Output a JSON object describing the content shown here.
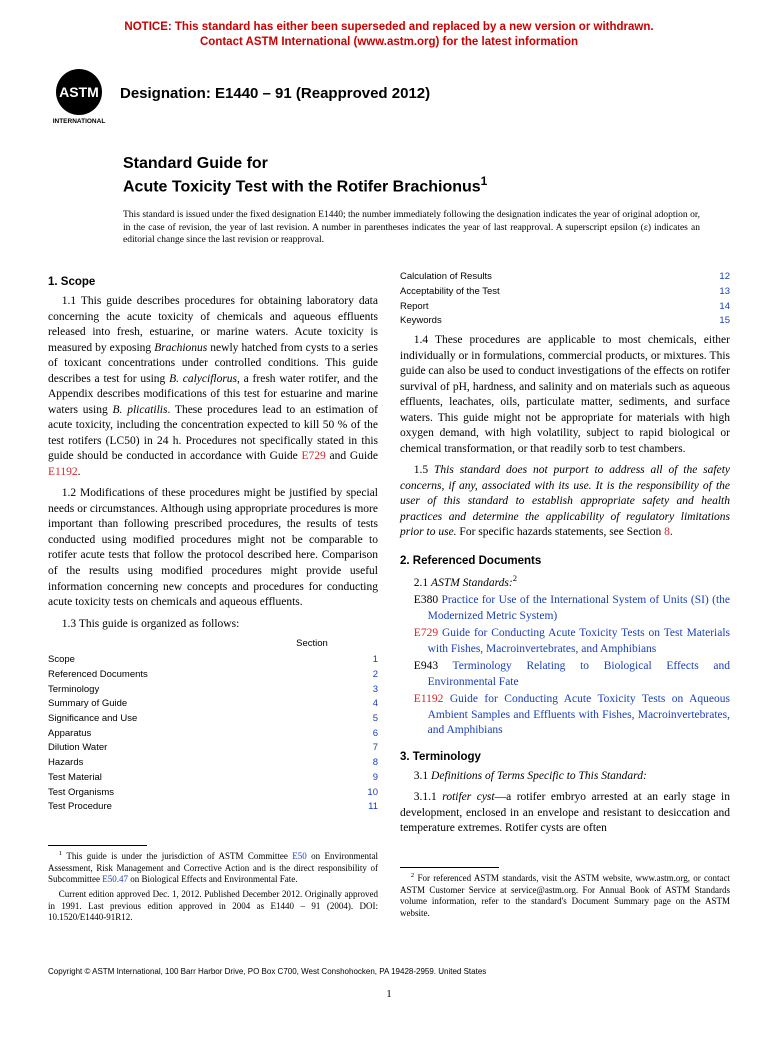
{
  "notice": {
    "line1": "NOTICE: This standard has either been superseded and replaced by a new version or withdrawn.",
    "line2": "Contact ASTM International (www.astm.org) for the latest information",
    "color": "#cc0000"
  },
  "designation": "Designation: E1440 – 91 (Reapproved 2012)",
  "title": {
    "overline": "Standard Guide for",
    "main": "Acute Toxicity Test with the Rotifer Brachionus",
    "sup": "1"
  },
  "issuance": "This standard is issued under the fixed designation E1440; the number immediately following the designation indicates the year of original adoption or, in the case of revision, the year of last revision. A number in parentheses indicates the year of last reapproval. A superscript epsilon (ε) indicates an editorial change since the last revision or reapproval.",
  "left": {
    "scope_head": "1. Scope",
    "p11a": "1.1 This guide describes procedures for obtaining laboratory data concerning the acute toxicity of chemicals and aqueous effluents released into fresh, estuarine, or marine waters. Acute toxicity is measured by exposing ",
    "p11b": "Brachionus",
    "p11c": " newly hatched from cysts to a series of toxicant concentrations under controlled conditions. This guide describes a test for using ",
    "p11d": "B. calyciflorus",
    "p11e": ", a fresh water rotifer, and the Appendix describes modifications of this test for estuarine and marine waters using ",
    "p11f": "B. plicatilis",
    "p11g": ". These procedures lead to an estimation of acute toxicity, including the concentration expected to kill 50 % of the test rotifers (LC50) in 24 h. Procedures not specifically stated in this guide should be conducted in accordance with Guide ",
    "p11_ref1": "E729",
    "p11h": " and Guide ",
    "p11_ref2": "E1192",
    "p11i": ".",
    "p12": "1.2 Modifications of these procedures might be justified by special needs or circumstances. Although using appropriate procedures is more important than following prescribed procedures, the results of tests conducted using modified procedures might not be comparable to rotifer acute tests that follow the protocol described here. Comparison of the results using modified procedures might provide useful information concerning new concepts and procedures for conducting acute toxicity tests on chemicals and aqueous effluents.",
    "p13": "1.3 This guide is organized as follows:",
    "toc_head": "Section",
    "toc": [
      {
        "label": "Scope",
        "num": "1"
      },
      {
        "label": "Referenced Documents",
        "num": "2"
      },
      {
        "label": "Terminology",
        "num": "3"
      },
      {
        "label": "Summary of Guide",
        "num": "4"
      },
      {
        "label": "Significance and Use",
        "num": "5"
      },
      {
        "label": "Apparatus",
        "num": "6"
      },
      {
        "label": "Dilution Water",
        "num": "7"
      },
      {
        "label": "Hazards",
        "num": "8"
      },
      {
        "label": "Test Material",
        "num": "9"
      },
      {
        "label": "Test Organisms",
        "num": "10"
      },
      {
        "label": "Test Procedure",
        "num": "11"
      }
    ],
    "fn1a": "This guide is under the jurisdiction of ASTM Committee ",
    "fn1_link1": "E50",
    "fn1b": " on Environmental Assessment, Risk Management and Corrective Action and is the direct responsibility of Subcommittee ",
    "fn1_link2": "E50.47",
    "fn1c": " on Biological Effects and Environmental Fate.",
    "fn1d": "Current edition approved Dec. 1, 2012. Published December 2012. Originally approved in 1991. Last previous edition approved in 2004 as E1440 – 91 (2004). DOI: 10.1520/E1440-91R12."
  },
  "right": {
    "toc": [
      {
        "label": "Calculation of Results",
        "num": "12"
      },
      {
        "label": "Acceptability of the Test",
        "num": "13"
      },
      {
        "label": "Report",
        "num": "14"
      },
      {
        "label": "Keywords",
        "num": "15"
      }
    ],
    "p14": "1.4 These procedures are applicable to most chemicals, either individually or in formulations, commercial products, or mixtures. This guide can also be used to conduct investigations of the effects on rotifer survival of pH, hardness, and salinity and on materials such as aqueous effluents, leachates, oils, particulate matter, sediments, and surface waters. This guide might not be appropriate for materials with high oxygen demand, with high volatility, subject to rapid biological or chemical transformation, or that readily sorb to test chambers.",
    "p15a": "1.5 ",
    "p15b": "This standard does not purport to address all of the safety concerns, if any, associated with its use. It is the responsibility of the user of this standard to establish appropriate safety and health practices and determine the applicability of regulatory limitations prior to use.",
    "p15c": " For specific hazards statements, see Section ",
    "p15_ref": "8",
    "p15d": ".",
    "refdocs_head": "2. Referenced Documents",
    "p21a": "2.1 ",
    "p21b": "ASTM Standards:",
    "p21_sup": "2",
    "refs": [
      {
        "code": "E380",
        "code_color": "#000000",
        "title": "Practice for Use of the International System of Units (SI) (the Modernized Metric System)"
      },
      {
        "code": "E729",
        "code_color": "#d62728",
        "title": "Guide for Conducting Acute Toxicity Tests on Test Materials with Fishes, Macroinvertebrates, and Amphibians"
      },
      {
        "code": "E943",
        "code_color": "#000000",
        "title": "Terminology Relating to Biological Effects and Environmental Fate"
      },
      {
        "code": "E1192",
        "code_color": "#d62728",
        "title": "Guide for Conducting Acute Toxicity Tests on Aqueous Ambient Samples and Effluents with Fishes, Macroinvertebrates, and Amphibians"
      }
    ],
    "term_head": "3. Terminology",
    "p31": "3.1 Definitions of Terms Specific to This Standard:",
    "p311a": "3.1.1 ",
    "p311b": "rotifer cyst",
    "p311c": "—a rotifer embryo arrested at an early stage in development, enclosed in an envelope and resistant to desiccation and temperature extremes. Rotifer cysts are often",
    "fn2": "For referenced ASTM standards, visit the ASTM website, www.astm.org, or contact ASTM Customer Service at service@astm.org. For Annual Book of ASTM Standards volume information, refer to the standard's Document Summary page on the ASTM website."
  },
  "copyright": "Copyright © ASTM International, 100 Barr Harbor Drive, PO Box C700, West Conshohocken, PA 19428-2959. United States",
  "pagenum": "1",
  "logo": {
    "bg": "#000000",
    "text": "ASTM",
    "sub": "INTERNATIONAL"
  }
}
